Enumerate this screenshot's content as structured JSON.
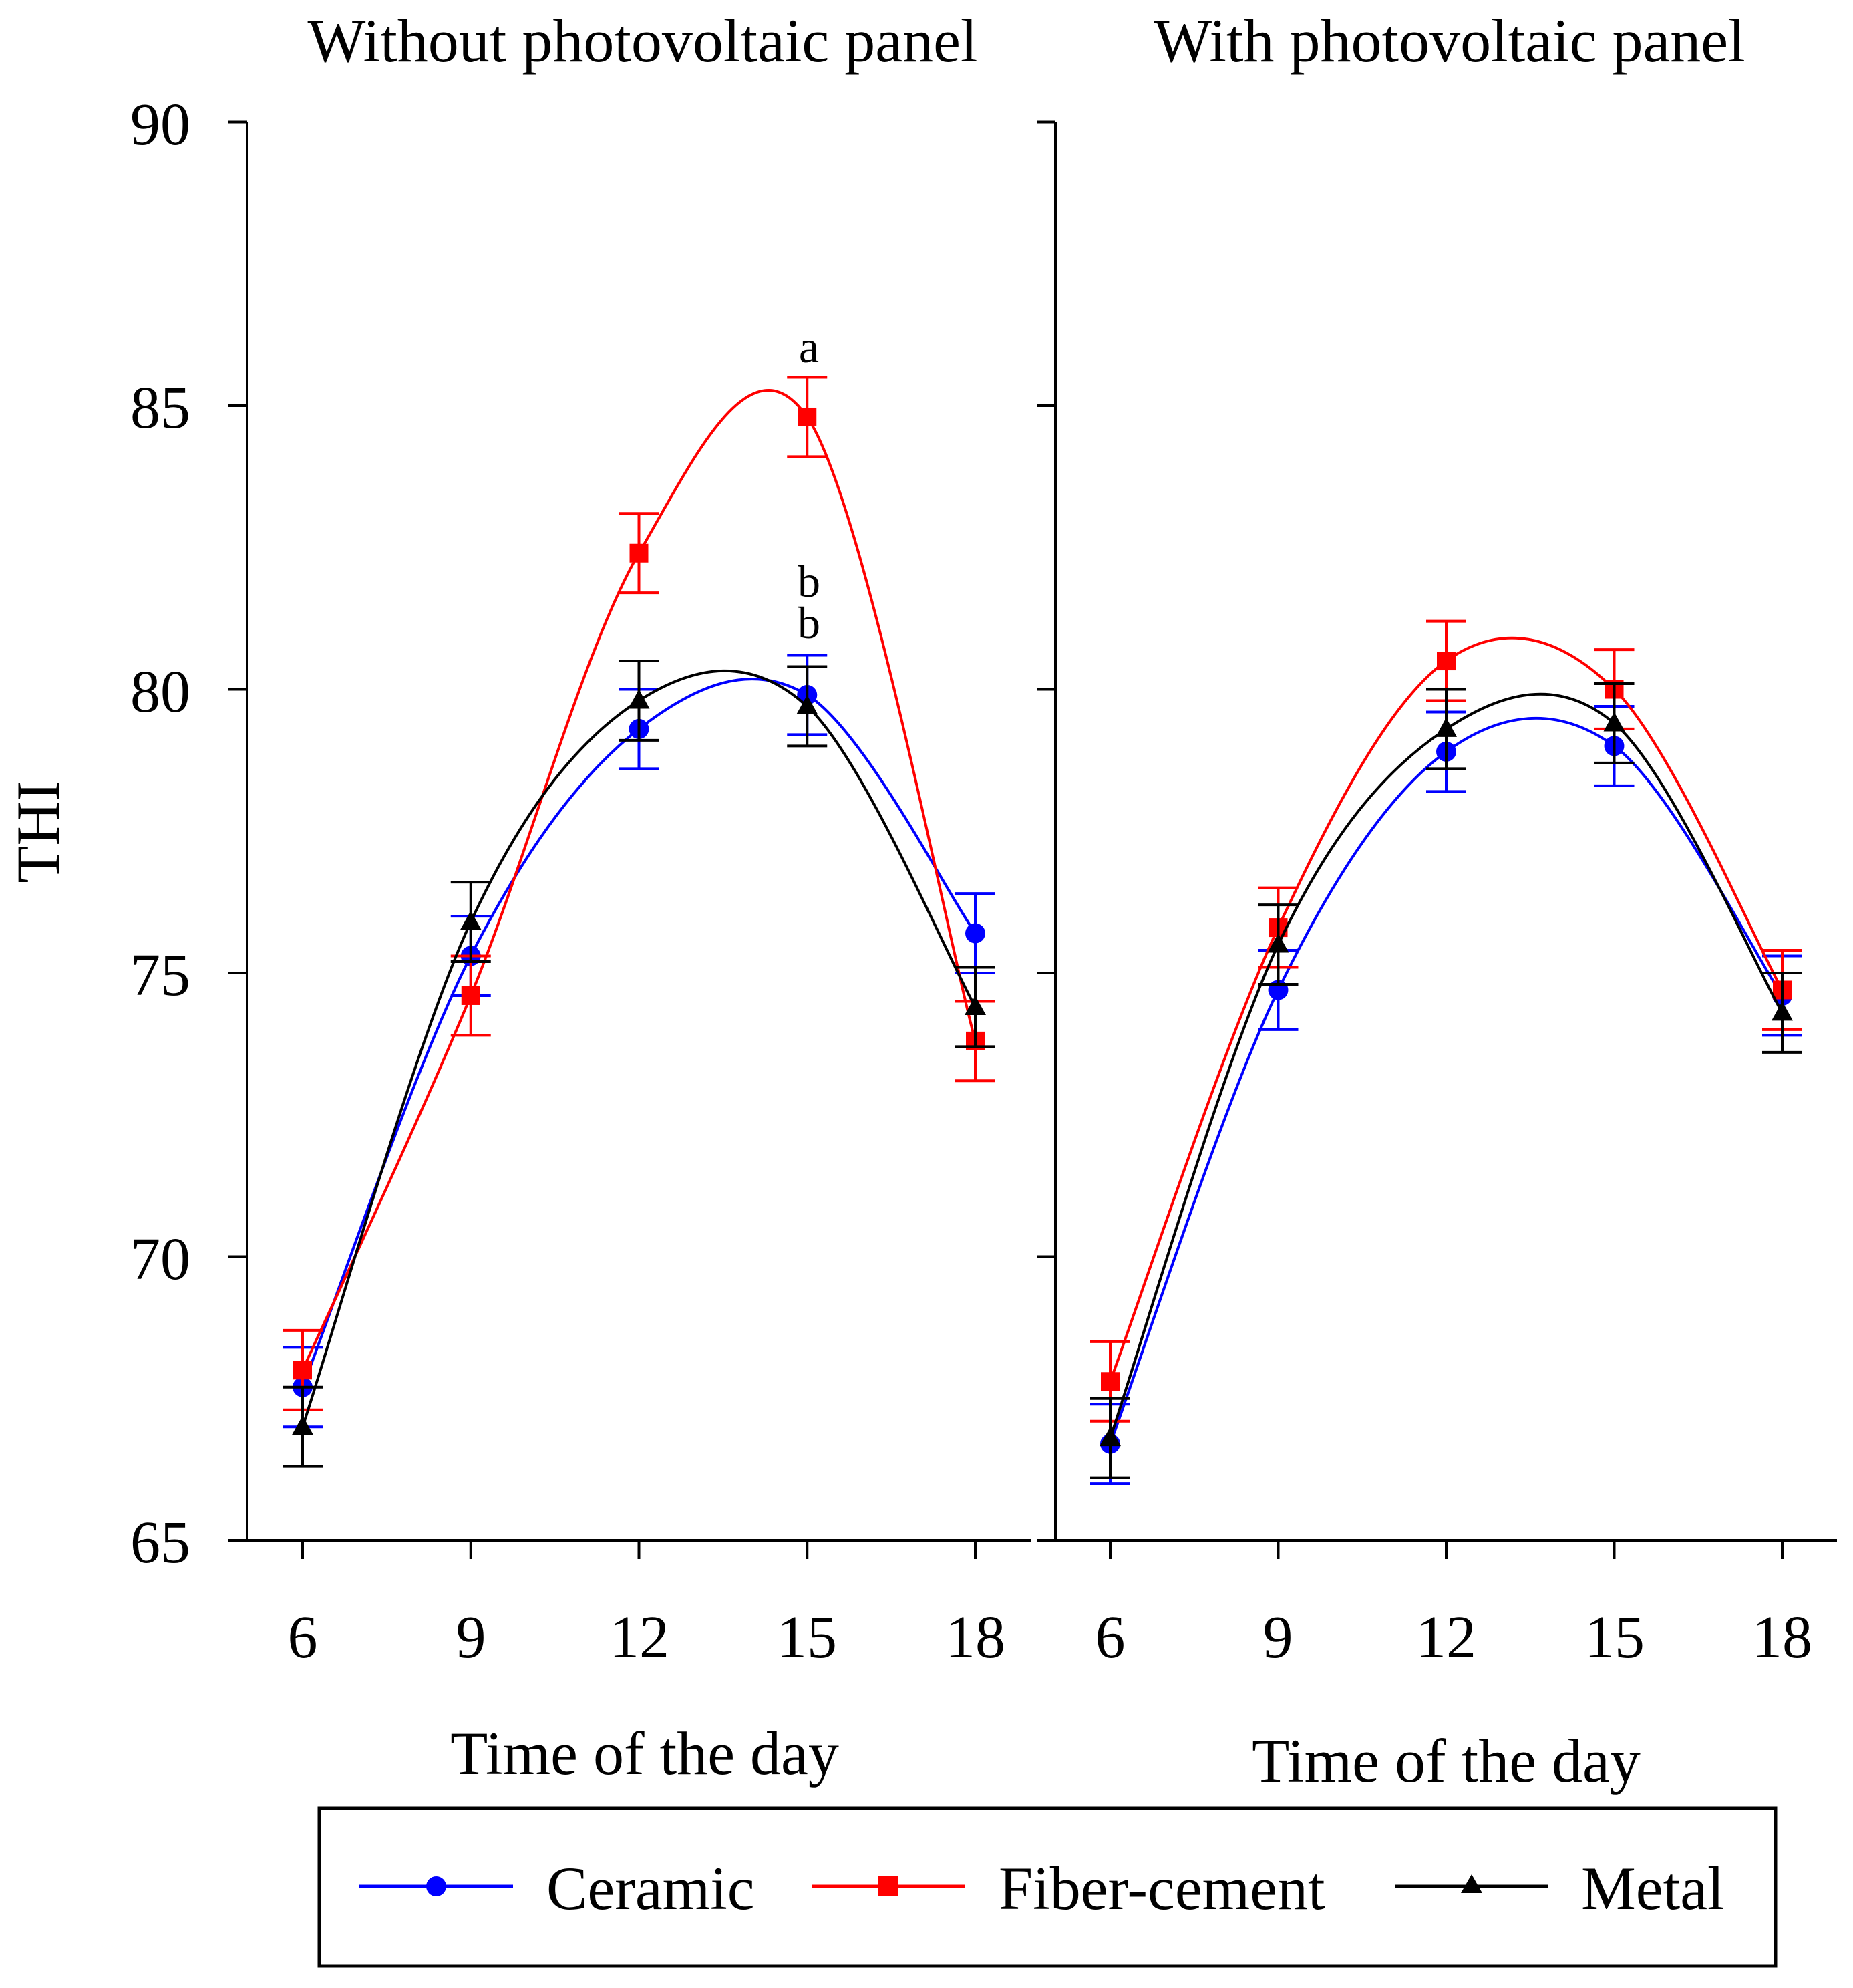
{
  "chart_data": [
    {
      "type": "line",
      "title": "Without photovoltaic panel",
      "xlabel": "Time of the day",
      "ylabel": "THI",
      "x": [
        6,
        9,
        12,
        15,
        18
      ],
      "xticks": [
        "6",
        "9",
        "12",
        "15",
        "18"
      ],
      "yticks": [
        "65",
        "70",
        "75",
        "80",
        "85",
        "90"
      ],
      "ylim": [
        65,
        90
      ],
      "series": [
        {
          "name": "Ceramic",
          "color": "#0000ff",
          "marker": "circle",
          "values": [
            67.7,
            75.3,
            79.3,
            79.9,
            75.7
          ],
          "errors": [
            0.7,
            0.7,
            0.7,
            0.7,
            0.7
          ]
        },
        {
          "name": "Fiber-cement",
          "color": "#ff0000",
          "marker": "square",
          "values": [
            68.0,
            74.6,
            82.4,
            84.8,
            73.8
          ],
          "errors": [
            0.7,
            0.7,
            0.7,
            0.7,
            0.7
          ]
        },
        {
          "name": "Metal",
          "color": "#000000",
          "marker": "triangle",
          "values": [
            67.0,
            75.9,
            79.8,
            79.7,
            74.4
          ],
          "errors": [
            0.7,
            0.7,
            0.7,
            0.7,
            0.7
          ]
        }
      ],
      "annotations": [
        {
          "text": "a",
          "x": 15,
          "y": 86.0
        },
        {
          "text": "b",
          "x": 15,
          "y": 81.8
        },
        {
          "text": "b",
          "x": 15,
          "y": 81.1
        }
      ]
    },
    {
      "type": "line",
      "title": "With photovoltaic panel",
      "xlabel": "Time of the day",
      "ylabel": "",
      "x": [
        6,
        9,
        12,
        15,
        18
      ],
      "xticks": [
        "6",
        "9",
        "12",
        "15",
        "18"
      ],
      "ylim": [
        65,
        90
      ],
      "series": [
        {
          "name": "Ceramic",
          "color": "#0000ff",
          "marker": "circle",
          "values": [
            66.7,
            74.7,
            78.9,
            79.0,
            74.6
          ],
          "errors": [
            0.7,
            0.7,
            0.7,
            0.7,
            0.7
          ]
        },
        {
          "name": "Fiber-cement",
          "color": "#ff0000",
          "marker": "square",
          "values": [
            67.8,
            75.8,
            80.5,
            80.0,
            74.7
          ],
          "errors": [
            0.7,
            0.7,
            0.7,
            0.7,
            0.7
          ]
        },
        {
          "name": "Metal",
          "color": "#000000",
          "marker": "triangle",
          "values": [
            66.8,
            75.5,
            79.3,
            79.4,
            74.3
          ],
          "errors": [
            0.7,
            0.7,
            0.7,
            0.7,
            0.7
          ]
        }
      ],
      "annotations": []
    }
  ],
  "legend": {
    "items": [
      {
        "label": "Ceramic",
        "color": "#0000ff",
        "marker": "circle"
      },
      {
        "label": "Fiber-cement",
        "color": "#ff0000",
        "marker": "square"
      },
      {
        "label": "Metal",
        "color": "#000000",
        "marker": "triangle"
      }
    ]
  }
}
